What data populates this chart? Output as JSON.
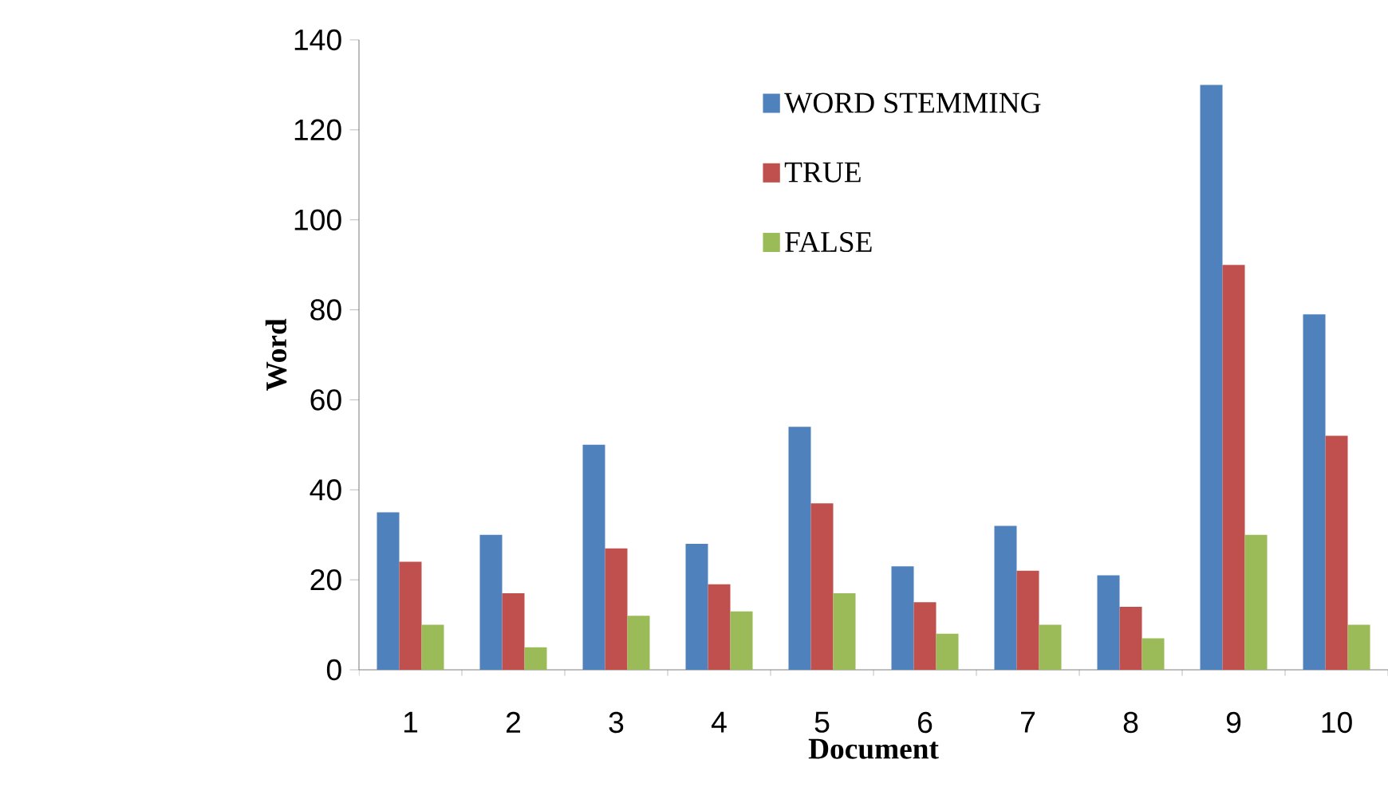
{
  "chart_data": {
    "type": "bar",
    "xlabel": "Document",
    "ylabel": "Word",
    "categories": [
      "1",
      "2",
      "3",
      "4",
      "5",
      "6",
      "7",
      "8",
      "9",
      "10"
    ],
    "series": [
      {
        "name": "WORD STEMMING",
        "color": "#4f81bd",
        "values": [
          35,
          30,
          50,
          28,
          54,
          23,
          32,
          21,
          130,
          79
        ]
      },
      {
        "name": "TRUE",
        "color": "#c0504d",
        "values": [
          24,
          17,
          27,
          19,
          37,
          15,
          22,
          14,
          90,
          52
        ]
      },
      {
        "name": "FALSE",
        "color": "#9bbb59",
        "values": [
          10,
          5,
          12,
          13,
          17,
          8,
          10,
          7,
          30,
          10
        ]
      }
    ],
    "ylim": [
      0,
      140
    ],
    "yticks": [
      0,
      20,
      40,
      60,
      80,
      100,
      120,
      140
    ],
    "grid": false,
    "legend": "top"
  }
}
